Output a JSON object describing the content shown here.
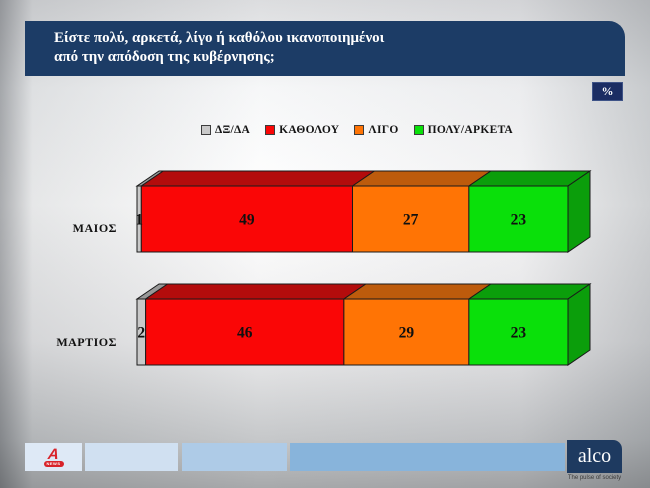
{
  "header": {
    "question_line1": "Είστε πολύ, αρκετά, λίγο ή καθόλου ικανοποιημένοι",
    "question_line2": "από την απόδοση της κυβέρνησης;"
  },
  "percent_badge": "%",
  "chart_data": {
    "type": "bar",
    "variant": "horizontal-stacked-3d",
    "unit": "%",
    "xlim": [
      0,
      100
    ],
    "legend_position": "top",
    "categories": [
      "ΜΑΙΟΣ",
      "ΜΑΡΤΙΟΣ"
    ],
    "series": [
      {
        "name": "ΔΞ/ΔΑ",
        "values": [
          1,
          2
        ],
        "color": "#c9c9c9",
        "side_color": "#989898"
      },
      {
        "name": "ΚΑΘΟΛΟΥ",
        "values": [
          49,
          46
        ],
        "color": "#fa0606",
        "side_color": "#b30c0c"
      },
      {
        "name": "ΛΙΓΟ",
        "values": [
          27,
          29
        ],
        "color": "#ff7405",
        "side_color": "#bd5b0c"
      },
      {
        "name": "ΠΟΛΥ/ΑΡΚΕΤΑ",
        "values": [
          23,
          23
        ],
        "color": "#0ae00a",
        "side_color": "#0b9e0b"
      }
    ]
  },
  "footer": {
    "alpha_mark": "A",
    "alpha_news_label": "NEWS",
    "alco": {
      "name": "alco",
      "tagline": "The pulse of society"
    }
  }
}
